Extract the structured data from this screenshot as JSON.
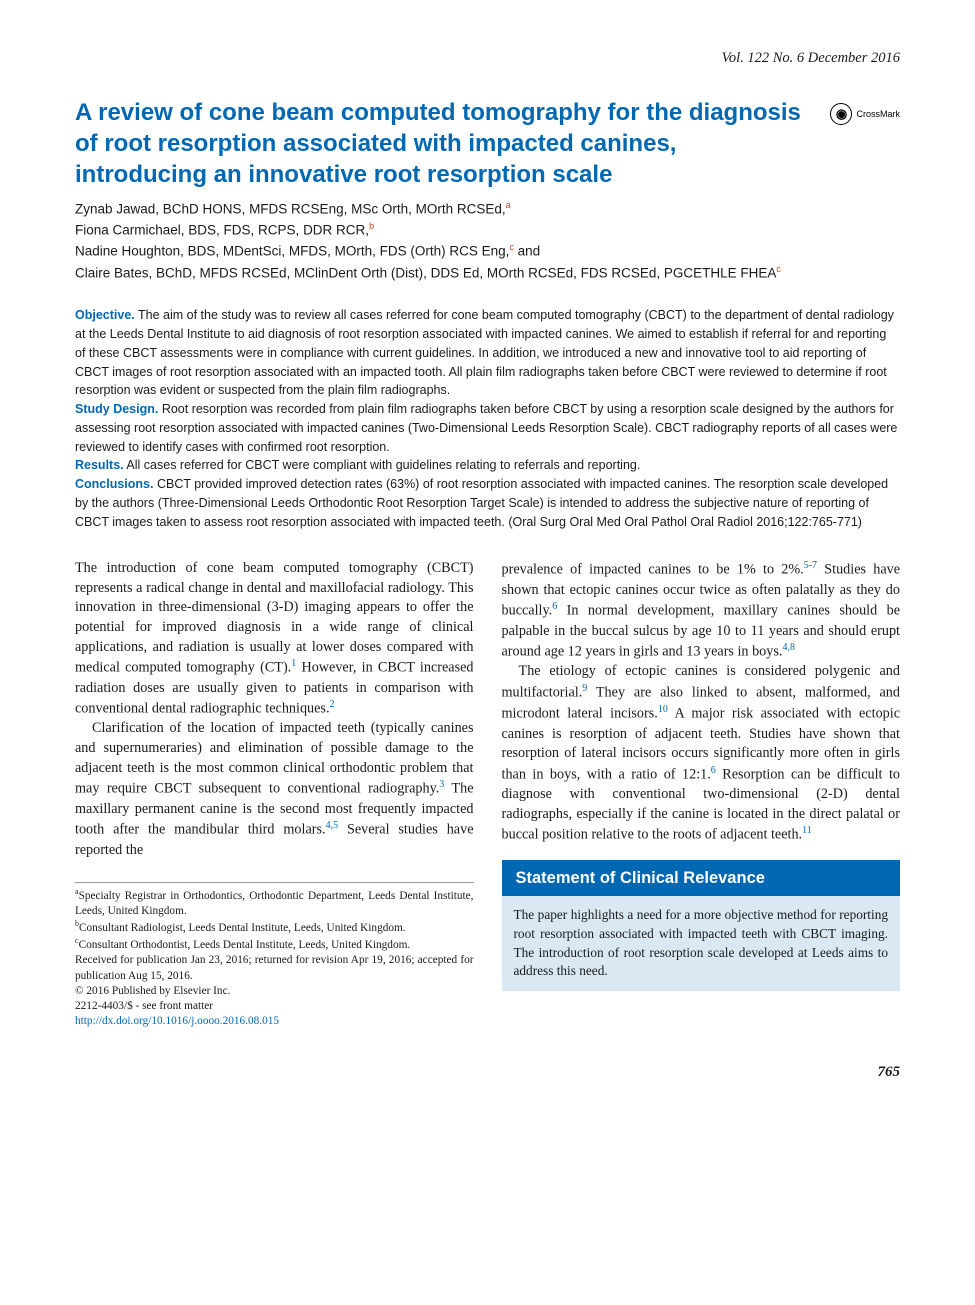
{
  "header": {
    "issue": "Vol. 122 No. 6 December 2016"
  },
  "title": "A review of cone beam computed tomography for the diagnosis of root resorption associated with impacted canines, introducing an innovative root resorption scale",
  "crossmark": {
    "label": "CrossMark",
    "icon_glyph": "◉"
  },
  "authors": [
    {
      "text": "Zynab Jawad, BChD HONS, MFDS RCSEng, MSc Orth, MOrth RCSEd,",
      "aff": "a"
    },
    {
      "text": "Fiona Carmichael, BDS, FDS, RCPS, DDR RCR,",
      "aff": "b"
    },
    {
      "text": "Nadine Houghton, BDS, MDentSci, MFDS, MOrth, FDS (Orth) RCS Eng,",
      "aff": "c",
      "trail": " and"
    },
    {
      "text": "Claire Bates, BChD, MFDS RCSEd, MClinDent Orth (Dist), DDS Ed, MOrth RCSEd, FDS RCSEd, PGCETHLE FHEA",
      "aff": "c"
    }
  ],
  "abstract": {
    "objective": {
      "label": "Objective.",
      "text": " The aim of the study was to review all cases referred for cone beam computed tomography (CBCT) to the department of dental radiology at the Leeds Dental Institute to aid diagnosis of root resorption associated with impacted canines. We aimed to establish if referral for and reporting of these CBCT assessments were in compliance with current guidelines. In addition, we introduced a new and innovative tool to aid reporting of CBCT images of root resorption associated with an impacted tooth. All plain film radiographs taken before CBCT were reviewed to determine if root resorption was evident or suspected from the plain film radiographs."
    },
    "study_design": {
      "label": "Study Design.",
      "text": " Root resorption was recorded from plain film radiographs taken before CBCT by using a resorption scale designed by the authors for assessing root resorption associated with impacted canines (Two-Dimensional Leeds Resorption Scale). CBCT radiography reports of all cases were reviewed to identify cases with confirmed root resorption."
    },
    "results": {
      "label": "Results.",
      "text": " All cases referred for CBCT were compliant with guidelines relating to referrals and reporting."
    },
    "conclusions": {
      "label": "Conclusions.",
      "text": " CBCT provided improved detection rates (63%) of root resorption associated with impacted canines. The resorption scale developed by the authors (Three-Dimensional Leeds Orthodontic Root Resorption Target Scale) is intended to address the subjective nature of reporting of CBCT images taken to assess root resorption associated with impacted teeth. (Oral Surg Oral Med Oral Pathol Oral Radiol 2016;122:765-771)"
    }
  },
  "body": {
    "col1": {
      "p1a": "The introduction of cone beam computed tomography (CBCT) represents a radical change in dental and maxillofacial radiology. This innovation in three-dimensional (3-D) imaging appears to offer the potential for improved diagnosis in a wide range of clinical applications, and radiation is usually at lower doses compared with medical computed tomography (CT).",
      "r1": "1",
      "p1b": " However, in CBCT increased radiation doses are usually given to patients in comparison with conventional dental radiographic techniques.",
      "r2": "2",
      "p2a": "Clarification of the location of impacted teeth (typically canines and supernumeraries) and elimination of possible damage to the adjacent teeth is the most common clinical orthodontic problem that may require CBCT subsequent to conventional radiography.",
      "r3": "3",
      "p2b": " The maxillary permanent canine is the second most frequently impacted tooth after the mandibular third molars.",
      "r45": "4,5",
      "p2c": " Several studies have reported the"
    },
    "col2": {
      "p1a": "prevalence of impacted canines to be 1% to 2%.",
      "r57": "5-7",
      "p1b": " Studies have shown that ectopic canines occur twice as often palatally as they do buccally.",
      "r6": "6",
      "p1c": " In normal development, maxillary canines should be palpable in the buccal sulcus by age 10 to 11 years and should erupt around age 12 years in girls and 13 years in boys.",
      "r48": "4,8",
      "p2a": "The etiology of ectopic canines is considered polygenic and multifactorial.",
      "r9": "9",
      "p2b": " They are also linked to absent, malformed, and microdont lateral incisors.",
      "r10": "10",
      "p2c": " A major risk associated with ectopic canines is resorption of adjacent teeth. Studies have shown that resorption of lateral incisors occurs significantly more often in girls than in boys, with a ratio of 12:1.",
      "r6b": "6",
      "p2d": " Resorption can be difficult to diagnose with conventional two-dimensional (2-D) dental radiographs, especially if the canine is located in the direct palatal or buccal position relative to the roots of adjacent teeth.",
      "r11": "11"
    }
  },
  "footnotes": {
    "a": {
      "sup": "a",
      "text": "Specialty Registrar in Orthodontics, Orthodontic Department, Leeds Dental Institute, Leeds, United Kingdom."
    },
    "b": {
      "sup": "b",
      "text": "Consultant Radiologist, Leeds Dental Institute, Leeds, United Kingdom."
    },
    "c": {
      "sup": "c",
      "text": "Consultant Orthodontist, Leeds Dental Institute, Leeds, United Kingdom."
    },
    "received": "Received for publication Jan 23, 2016; returned for revision Apr 19, 2016; accepted for publication Aug 15, 2016.",
    "copyright": "© 2016 Published by Elsevier Inc.",
    "issn": "2212-4403/$ - see front matter",
    "doi": "http://dx.doi.org/10.1016/j.oooo.2016.08.015"
  },
  "relevance": {
    "header": "Statement of Clinical Relevance",
    "body": "The paper highlights a need for a more objective method for reporting root resorption associated with impacted teeth with CBCT imaging. The introduction of root resorption scale developed at Leeds aims to address this need."
  },
  "page_number": "765",
  "colors": {
    "title_blue": "#0068b3",
    "aff_orange": "#c44a1c",
    "relevance_bg": "#d9e8f3",
    "text": "#1a1a1a"
  },
  "typography": {
    "title_fontsize": 24,
    "authors_fontsize": 13.5,
    "abstract_fontsize": 12.5,
    "body_fontsize": 14.2,
    "footnote_fontsize": 11.3,
    "relevance_header_fontsize": 16.5,
    "relevance_body_fontsize": 13.3
  }
}
